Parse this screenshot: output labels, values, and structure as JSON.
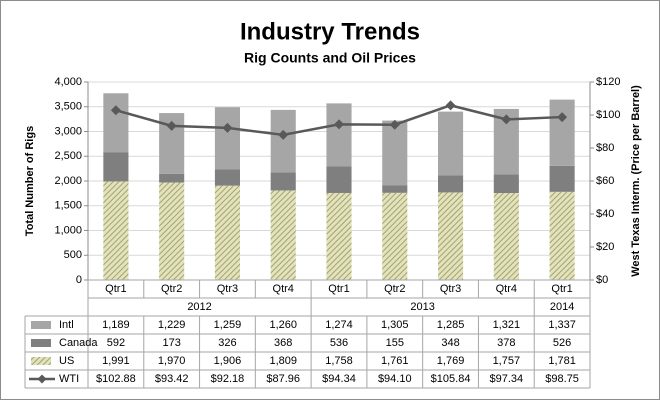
{
  "chart_data": {
    "type": "bar",
    "title": "Industry Trends",
    "subtitle": "Rig Counts and Oil Prices",
    "y_label": "Total Number of Rigs",
    "y2_label": "West Texas Interm. (Price per Barrel)",
    "category_groups": [
      {
        "label": "2012",
        "categories": [
          "Qtr1",
          "Qtr2",
          "Qtr3",
          "Qtr4"
        ]
      },
      {
        "label": "2013",
        "categories": [
          "Qtr1",
          "Qtr2",
          "Qtr3",
          "Qtr4"
        ]
      },
      {
        "label": "2014",
        "categories": [
          "Qtr1"
        ]
      }
    ],
    "stacked": true,
    "grid": true,
    "ylim": [
      0,
      4000
    ],
    "yticks": [
      {
        "value": 0,
        "label": "0"
      },
      {
        "value": 500,
        "label": "500"
      },
      {
        "value": 1000,
        "label": "1,000"
      },
      {
        "value": 1500,
        "label": "1,500"
      },
      {
        "value": 2000,
        "label": "2,000"
      },
      {
        "value": 2500,
        "label": "2,500"
      },
      {
        "value": 3000,
        "label": "3,000"
      },
      {
        "value": 3500,
        "label": "3,500"
      },
      {
        "value": 4000,
        "label": "4,000"
      }
    ],
    "y2lim": [
      0,
      120
    ],
    "y2ticks": [
      {
        "value": 0,
        "label": "$0"
      },
      {
        "value": 20,
        "label": "$20"
      },
      {
        "value": 40,
        "label": "$40"
      },
      {
        "value": 60,
        "label": "$60"
      },
      {
        "value": 80,
        "label": "$80"
      },
      {
        "value": 100,
        "label": "$100"
      },
      {
        "value": 120,
        "label": "$120"
      }
    ],
    "series": [
      {
        "name": "Intl",
        "type": "bar",
        "color": "#a6a6a6",
        "values": [
          1189,
          1229,
          1259,
          1260,
          1274,
          1305,
          1285,
          1321,
          1337
        ],
        "value_labels": [
          "1,189",
          "1,229",
          "1,259",
          "1,260",
          "1,274",
          "1,305",
          "1,285",
          "1,321",
          "1,337"
        ]
      },
      {
        "name": "Canada",
        "type": "bar",
        "color": "#7f7f7f",
        "values": [
          592,
          173,
          326,
          368,
          536,
          155,
          348,
          378,
          526
        ],
        "value_labels": [
          "592",
          "173",
          "326",
          "368",
          "536",
          "155",
          "348",
          "378",
          "526"
        ]
      },
      {
        "name": "US",
        "type": "bar",
        "color": "#c9c99a",
        "hatch": true,
        "values": [
          1991,
          1970,
          1906,
          1809,
          1758,
          1761,
          1769,
          1757,
          1781
        ],
        "value_labels": [
          "1,991",
          "1,970",
          "1,906",
          "1,809",
          "1,758",
          "1,761",
          "1,769",
          "1,757",
          "1,781"
        ]
      },
      {
        "name": "WTI",
        "type": "line",
        "axis": "y2",
        "color": "#595959",
        "values": [
          102.88,
          93.42,
          92.18,
          87.96,
          94.34,
          94.1,
          105.84,
          97.34,
          98.75
        ],
        "value_labels": [
          "$102.88",
          "$93.42",
          "$92.18",
          "$87.96",
          "$94.34",
          "$94.10",
          "$105.84",
          "$97.34",
          "$98.75"
        ]
      }
    ]
  }
}
